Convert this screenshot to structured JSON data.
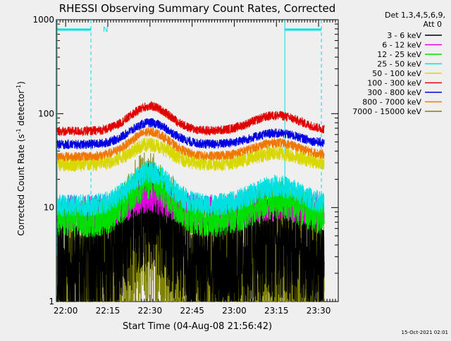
{
  "chart_data": {
    "type": "line",
    "title": "RHESSI Observing Summary Count Rates, Corrected",
    "xlabel": "Start Time (04-Aug-08 21:56:42)",
    "ylabel_main": "Corrected Count Rate (s",
    "ylabel_sup1": "-1",
    "ylabel_mid": " detector",
    "ylabel_sup2": "-1",
    "ylabel_end": ")",
    "y_scale": "log",
    "ylim": [
      1,
      1000
    ],
    "xlim": [
      "21:56:42",
      "23:37:00"
    ],
    "x_ticks": [
      "22:00",
      "22:15",
      "22:30",
      "22:45",
      "23:00",
      "23:15",
      "23:30"
    ],
    "y_ticks": [
      "1",
      "10",
      "100",
      "1000"
    ],
    "legend_title_line1": "Det 1,3,4,5,6,9,",
    "legend_title_line2": "Att 0",
    "legend_placement": "right",
    "flag_marker": "N",
    "timestamp": "15-Oct-2021 02:01",
    "series": [
      {
        "name": "3 - 6 keV",
        "color": "#000000",
        "base": 2.3,
        "peak1": 8.0,
        "peak2": 3.8,
        "noise": 0.6
      },
      {
        "name": "6 - 12 keV",
        "color": "#e000e0",
        "base": 9.0,
        "peak1": 13.0,
        "peak2": 11.0,
        "noise": 0.18
      },
      {
        "name": "12 - 25 keV",
        "color": "#00e000",
        "base": 7.5,
        "peak1": 19.0,
        "peak2": 12.0,
        "noise": 0.2
      },
      {
        "name": "25 - 50 keV",
        "color": "#00e0e0",
        "base": 10.5,
        "peak1": 24.0,
        "peak2": 17.0,
        "noise": 0.12
      },
      {
        "name": "50 - 100 keV",
        "color": "#d8d800",
        "base": 29.0,
        "peak1": 47.0,
        "peak2": 38.0,
        "noise": 0.08
      },
      {
        "name": "100 - 300 keV",
        "color": "#e00000",
        "base": 65.0,
        "peak1": 120.0,
        "peak2": 96.0,
        "noise": 0.05
      },
      {
        "name": "300 - 800 keV",
        "color": "#0000e0",
        "base": 47.0,
        "peak1": 80.0,
        "peak2": 62.0,
        "noise": 0.05
      },
      {
        "name": "800 - 7000 keV",
        "color": "#f07800",
        "base": 35.0,
        "peak1": 64.0,
        "peak2": 49.0,
        "noise": 0.05
      },
      {
        "name": "7000 - 15000 keV",
        "color": "#808000",
        "base": 1.6,
        "peak1": 5.5,
        "peak2": 2.5,
        "noise": 0.9
      }
    ]
  }
}
